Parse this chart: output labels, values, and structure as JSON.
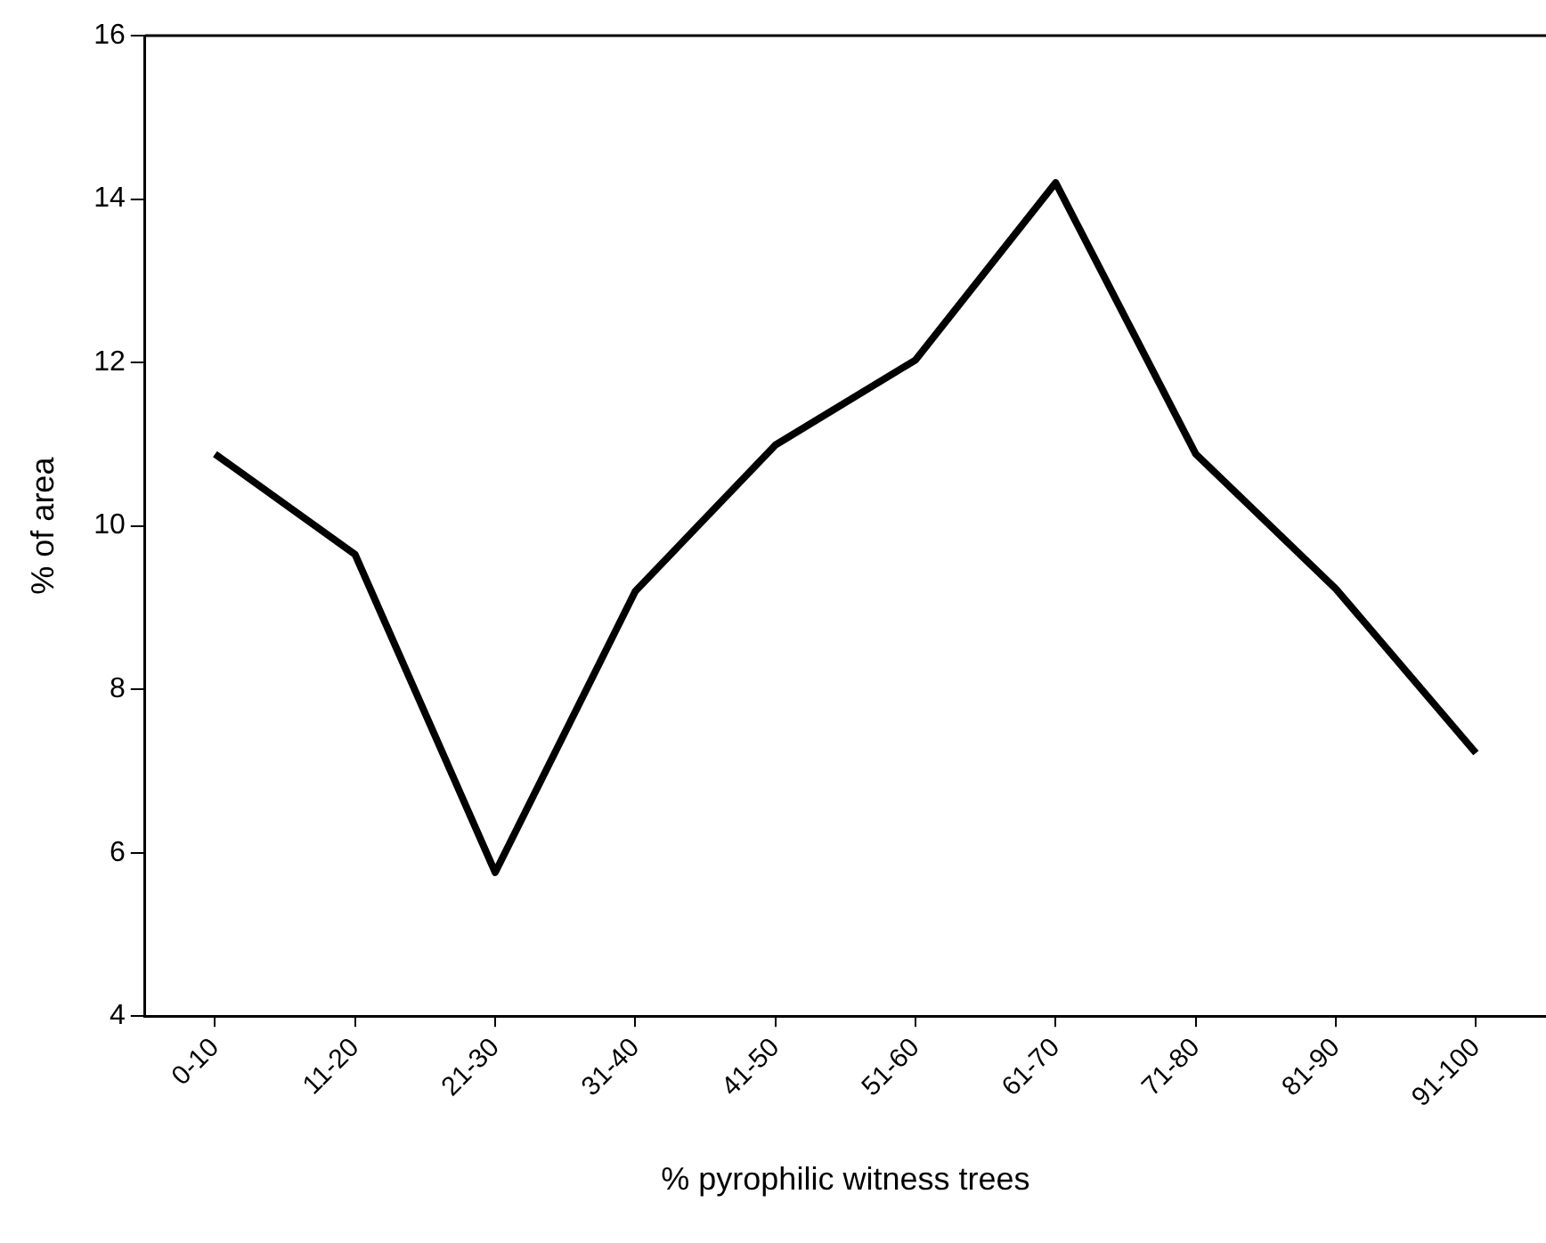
{
  "chart_data": {
    "type": "line",
    "xlabel": "% pyrophilic witness trees",
    "ylabel": "% of area",
    "categories": [
      "0-10",
      "11-20",
      "21-30",
      "31-40",
      "41-50",
      "51-60",
      "61-70",
      "71-80",
      "81-90",
      "91-100"
    ],
    "series": [
      {
        "color": "#000000",
        "values": [
          10.88,
          9.65,
          5.76,
          9.2,
          10.99,
          12.03,
          14.2,
          10.88,
          9.23,
          7.22
        ]
      }
    ],
    "ylim": [
      4,
      16
    ],
    "yticks": [
      4,
      6,
      8,
      10,
      12,
      14,
      16
    ],
    "grid": false,
    "legend": false,
    "marker": "none",
    "line_style": "solid"
  }
}
